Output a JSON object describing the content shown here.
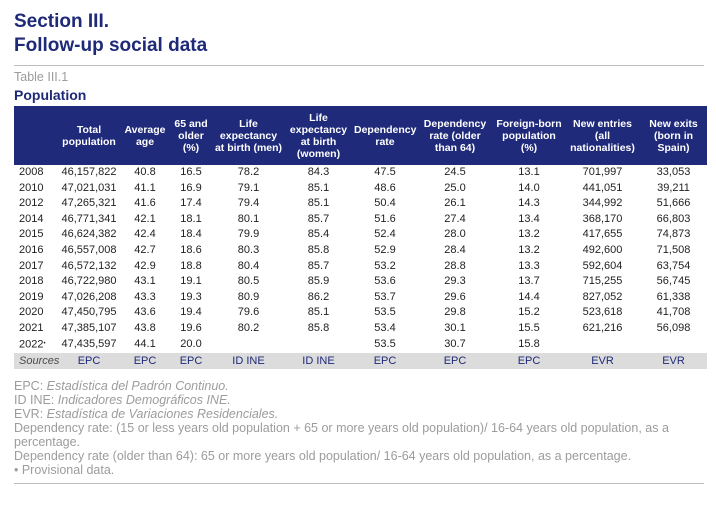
{
  "section": {
    "line1": "Section III.",
    "line2": "Follow-up social data"
  },
  "table_label": "Table III.1",
  "table_title": "Population",
  "columns": [
    "",
    "Total population",
    "Average age",
    "65 and older (%)",
    "Life expectancy at birth (men)",
    "Life expectancy at birth (women)",
    "Dependency rate",
    "Dependency rate (older than 64)",
    "Foreign-born population (%)",
    "New entries (all nationalities)",
    "New exits (born in Spain)"
  ],
  "rows": [
    [
      "2008",
      "46,157,822",
      "40.8",
      "16.5",
      "78.2",
      "84.3",
      "47.5",
      "24.5",
      "13.1",
      "701,997",
      "33,053"
    ],
    [
      "2010",
      "47,021,031",
      "41.1",
      "16.9",
      "79.1",
      "85.1",
      "48.6",
      "25.0",
      "14.0",
      "441,051",
      "39,211"
    ],
    [
      "2012",
      "47,265,321",
      "41.6",
      "17.4",
      "79.4",
      "85.1",
      "50.4",
      "26.1",
      "14.3",
      "344,992",
      "51,666"
    ],
    [
      "2014",
      "46,771,341",
      "42.1",
      "18.1",
      "80.1",
      "85.7",
      "51.6",
      "27.4",
      "13.4",
      "368,170",
      "66,803"
    ],
    [
      "2015",
      "46,624,382",
      "42.4",
      "18.4",
      "79.9",
      "85.4",
      "52.4",
      "28.0",
      "13.2",
      "417,655",
      "74,873"
    ],
    [
      "2016",
      "46,557,008",
      "42.7",
      "18.6",
      "80.3",
      "85.8",
      "52.9",
      "28.4",
      "13.2",
      "492,600",
      "71,508"
    ],
    [
      "2017",
      "46,572,132",
      "42.9",
      "18.8",
      "80.4",
      "85.7",
      "53.2",
      "28.8",
      "13.3",
      "592,604",
      "63,754"
    ],
    [
      "2018",
      "46,722,980",
      "43.1",
      "19.1",
      "80.5",
      "85.9",
      "53.6",
      "29.3",
      "13.7",
      "715,255",
      "56,745"
    ],
    [
      "2019",
      "47,026,208",
      "43.3",
      "19.3",
      "80.9",
      "86.2",
      "53.7",
      "29.6",
      "14.4",
      "827,052",
      "61,338"
    ],
    [
      "2020",
      "47,450,795",
      "43.6",
      "19.4",
      "79.6",
      "85.1",
      "53.5",
      "29.8",
      "15.2",
      "523,618",
      "41,708"
    ],
    [
      "2021",
      "47,385,107",
      "43.8",
      "19.6",
      "80.2",
      "85.8",
      "53.4",
      "30.1",
      "15.5",
      "621,216",
      "56,098"
    ],
    [
      "2022",
      "47,435,597",
      "44.1",
      "20.0",
      "",
      "",
      "53.5",
      "30.7",
      "15.8",
      "",
      ""
    ]
  ],
  "provisional_mark": "•",
  "sources": [
    "Sources",
    "EPC",
    "EPC",
    "EPC",
    "ID INE",
    "ID INE",
    "EPC",
    "EPC",
    "EPC",
    "EVR",
    "EVR"
  ],
  "notes": {
    "epc_abbr": "EPC: ",
    "epc_text": "Estadística del Padrón Continuo.",
    "idine_abbr": "ID INE: ",
    "idine_text": "Indicadores Demográficos INE.",
    "evr_abbr": "EVR: ",
    "evr_text": "Estadística de Variaciones Residenciales.",
    "dep_rate": "Dependency rate: (15 or less years old population + 65 or more years old population)/ 16-64 years old population, as a percentage.",
    "dep_rate_old": "Dependency rate (older than 64): 65 or more years old population/ 16-64 years old population, as a percentage.",
    "provisional": "• Provisional data."
  }
}
